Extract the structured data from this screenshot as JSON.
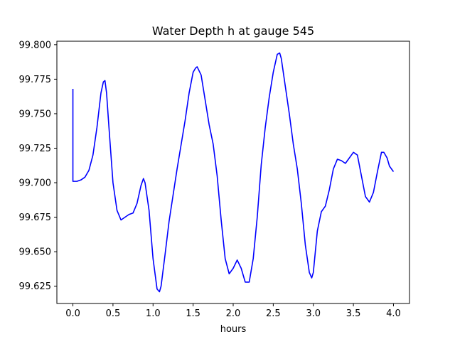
{
  "chart_data": {
    "type": "line",
    "title": "Water Depth h at gauge 545",
    "xlabel": "hours",
    "ylabel": "",
    "xlim": [
      -0.2,
      4.2
    ],
    "ylim": [
      99.6125,
      99.8025
    ],
    "x_ticks": [
      0.0,
      0.5,
      1.0,
      1.5,
      2.0,
      2.5,
      3.0,
      3.5,
      4.0
    ],
    "x_tick_labels": [
      "0.0",
      "0.5",
      "1.0",
      "1.5",
      "2.0",
      "2.5",
      "3.0",
      "3.5",
      "4.0"
    ],
    "y_ticks": [
      99.625,
      99.65,
      99.675,
      99.7,
      99.725,
      99.75,
      99.775,
      99.8
    ],
    "y_tick_labels": [
      "99.625",
      "99.650",
      "99.675",
      "99.700",
      "99.725",
      "99.750",
      "99.775",
      "99.800"
    ],
    "grid": false,
    "series": [
      {
        "color": "#0000ff",
        "x": [
          0.0,
          0.0,
          0.05,
          0.1,
          0.15,
          0.2,
          0.25,
          0.3,
          0.35,
          0.38,
          0.4,
          0.42,
          0.45,
          0.5,
          0.55,
          0.6,
          0.65,
          0.7,
          0.75,
          0.8,
          0.85,
          0.88,
          0.9,
          0.95,
          1.0,
          1.05,
          1.08,
          1.1,
          1.15,
          1.2,
          1.3,
          1.4,
          1.45,
          1.5,
          1.53,
          1.55,
          1.6,
          1.65,
          1.7,
          1.75,
          1.8,
          1.85,
          1.9,
          1.95,
          2.0,
          2.05,
          2.1,
          2.15,
          2.2,
          2.25,
          2.3,
          2.35,
          2.4,
          2.45,
          2.5,
          2.55,
          2.58,
          2.6,
          2.65,
          2.7,
          2.75,
          2.8,
          2.85,
          2.9,
          2.95,
          2.98,
          3.0,
          3.05,
          3.1,
          3.15,
          3.2,
          3.25,
          3.3,
          3.35,
          3.4,
          3.45,
          3.5,
          3.55,
          3.6,
          3.65,
          3.7,
          3.75,
          3.8,
          3.85,
          3.88,
          3.92,
          3.95,
          4.0
        ],
        "values": [
          99.768,
          99.701,
          99.701,
          99.702,
          99.704,
          99.709,
          99.72,
          99.74,
          99.765,
          99.773,
          99.774,
          99.765,
          99.74,
          99.7,
          99.68,
          99.673,
          99.675,
          99.677,
          99.678,
          99.685,
          99.698,
          99.703,
          99.7,
          99.68,
          99.645,
          99.623,
          99.621,
          99.625,
          99.648,
          99.672,
          99.71,
          99.745,
          99.765,
          99.78,
          99.783,
          99.784,
          99.778,
          99.76,
          99.742,
          99.728,
          99.705,
          99.673,
          99.645,
          99.634,
          99.638,
          99.644,
          99.638,
          99.628,
          99.628,
          99.645,
          99.675,
          99.713,
          99.74,
          99.762,
          99.78,
          99.793,
          99.794,
          99.79,
          99.77,
          99.75,
          99.728,
          99.71,
          99.685,
          99.655,
          99.635,
          99.631,
          99.635,
          99.665,
          99.679,
          99.683,
          99.695,
          99.71,
          99.717,
          99.716,
          99.714,
          99.718,
          99.722,
          99.72,
          99.705,
          99.69,
          99.686,
          99.693,
          99.708,
          99.722,
          99.722,
          99.718,
          99.712,
          99.708
        ]
      }
    ]
  }
}
